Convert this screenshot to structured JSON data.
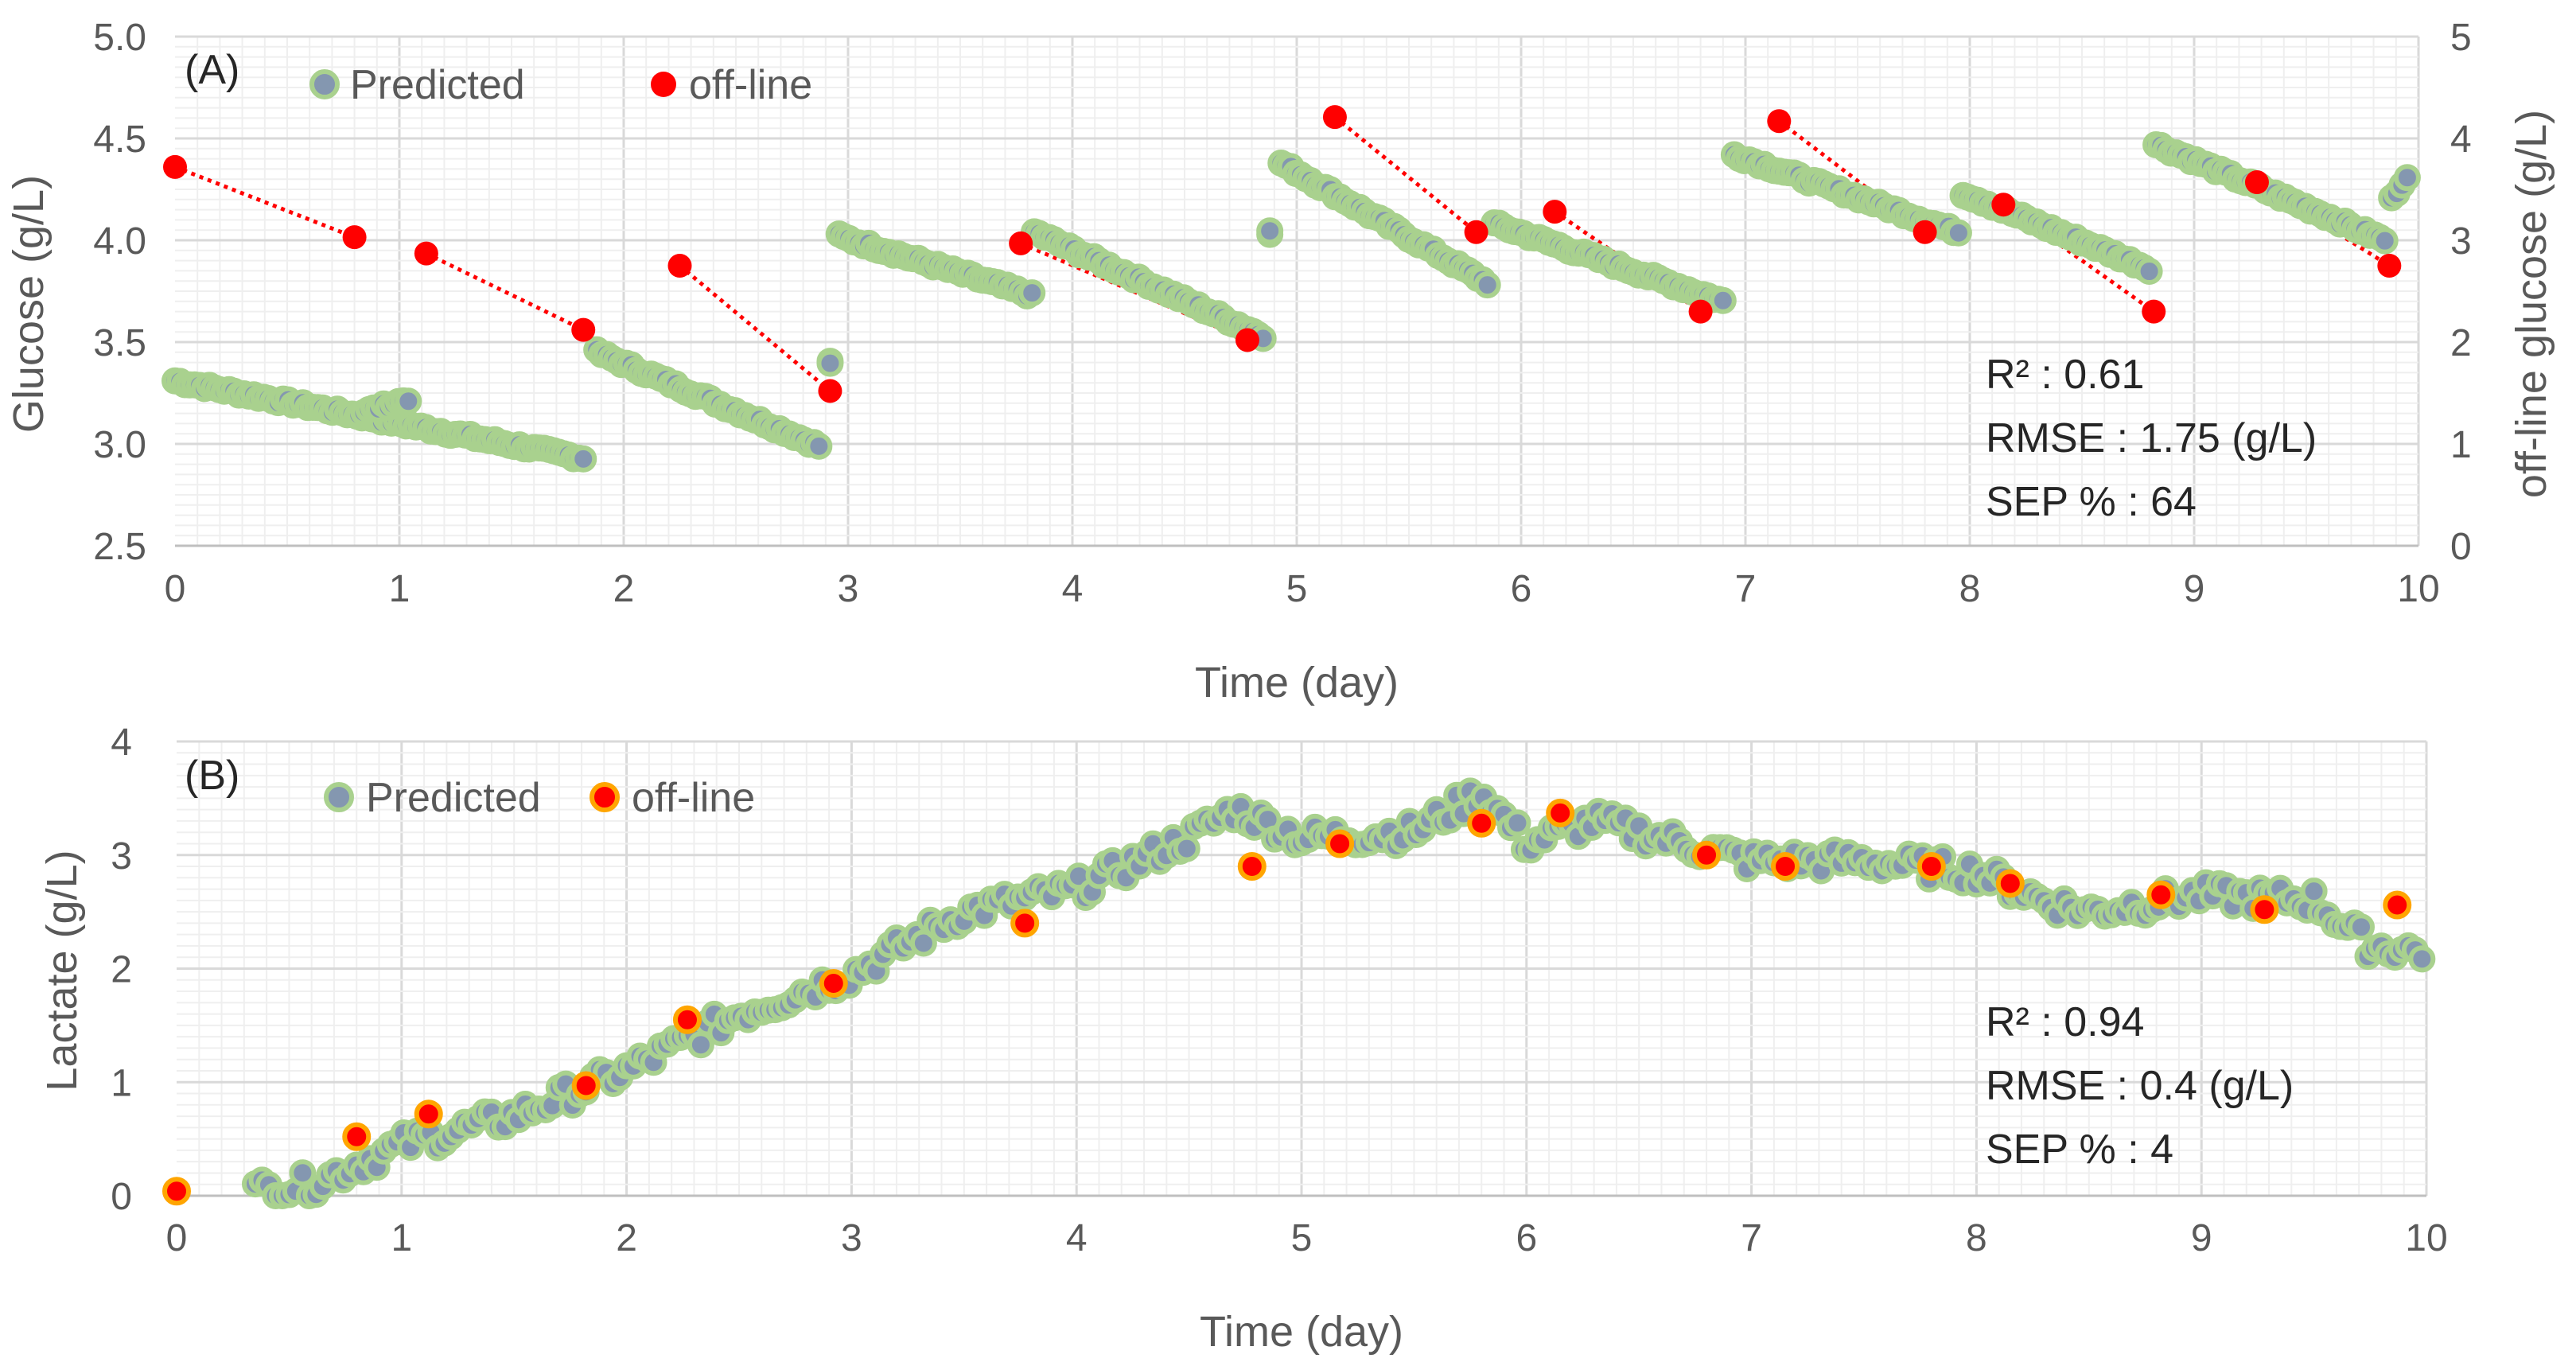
{
  "chart_data": [
    {
      "type": "scatter",
      "panel_label": "(A)",
      "title": "",
      "xlabel": "Time (day)",
      "ylabel": "Glucose (g/L)",
      "y2label": "off-line glucose (g/L)",
      "xlim": [
        0,
        10
      ],
      "ylim": [
        2.5,
        5.0
      ],
      "y2lim": [
        0,
        5
      ],
      "x_ticks": [
        "0",
        "1",
        "2",
        "3",
        "4",
        "5",
        "6",
        "7",
        "8",
        "9",
        "10"
      ],
      "y_ticks": [
        "2.5",
        "3.0",
        "3.5",
        "4.0",
        "4.5",
        "5.0"
      ],
      "y2_ticks": [
        "0",
        "1",
        "2",
        "3",
        "4",
        "5"
      ],
      "grid": true,
      "legend_position": "top-left",
      "legend": {
        "predicted": "Predicted",
        "offline": "off-line"
      },
      "stats": [
        "R² : 0.61",
        "RMSE : 1.75 (g/L)",
        "SEP % : 64"
      ],
      "colors": {
        "predicted_fill": "#8497b0",
        "predicted_edge": "#a9d18e",
        "offline": "#ff0000",
        "dotted_line": "#ff0000"
      },
      "predicted_segments": [
        [
          [
            0.0,
            3.31
          ],
          [
            1.82,
            2.93
          ]
        ],
        [
          [
            0.82,
            3.15
          ],
          [
            1.04,
            3.22
          ]
        ],
        [
          [
            1.88,
            3.45
          ],
          [
            2.87,
            2.99
          ]
        ],
        [
          [
            2.92,
            3.4
          ],
          [
            2.92,
            3.4
          ]
        ],
        [
          [
            2.96,
            4.02
          ],
          [
            3.82,
            3.73
          ]
        ],
        [
          [
            3.83,
            4.04
          ],
          [
            4.85,
            3.53
          ]
        ],
        [
          [
            4.88,
            4.04
          ],
          [
            4.88,
            4.04
          ]
        ],
        [
          [
            4.93,
            4.38
          ],
          [
            5.85,
            3.79
          ]
        ],
        [
          [
            5.88,
            4.08
          ],
          [
            6.9,
            3.7
          ]
        ],
        [
          [
            6.95,
            4.42
          ],
          [
            7.95,
            4.04
          ]
        ],
        [
          [
            7.97,
            4.23
          ],
          [
            8.8,
            3.86
          ]
        ],
        [
          [
            8.83,
            4.47
          ],
          [
            9.85,
            4.0
          ]
        ],
        [
          [
            9.88,
            4.2
          ],
          [
            9.95,
            4.32
          ]
        ]
      ],
      "offline_points": [
        {
          "day": 0.0,
          "value": 3.72
        },
        {
          "day": 0.8,
          "value": 3.03
        },
        {
          "day": 1.12,
          "value": 2.87
        },
        {
          "day": 1.82,
          "value": 2.12
        },
        {
          "day": 2.25,
          "value": 2.75
        },
        {
          "day": 2.92,
          "value": 1.52
        },
        {
          "day": 3.77,
          "value": 2.97
        },
        {
          "day": 4.78,
          "value": 2.02
        },
        {
          "day": 5.17,
          "value": 4.21
        },
        {
          "day": 5.8,
          "value": 3.08
        },
        {
          "day": 6.15,
          "value": 3.28
        },
        {
          "day": 6.8,
          "value": 2.3
        },
        {
          "day": 7.15,
          "value": 4.17
        },
        {
          "day": 7.8,
          "value": 3.08
        },
        {
          "day": 8.15,
          "value": 3.35
        },
        {
          "day": 8.82,
          "value": 2.3
        },
        {
          "day": 9.28,
          "value": 3.57
        },
        {
          "day": 9.87,
          "value": 2.75
        }
      ],
      "offline_links": [
        [
          0,
          1
        ],
        [
          2,
          3
        ],
        [
          4,
          5
        ],
        [
          6,
          7
        ],
        [
          8,
          9
        ],
        [
          10,
          11
        ],
        [
          12,
          13
        ],
        [
          14,
          15
        ],
        [
          16,
          17
        ]
      ]
    },
    {
      "type": "scatter",
      "panel_label": "(B)",
      "title": "",
      "xlabel": "Time (day)",
      "ylabel": "Lactate (g/L)",
      "xlim": [
        0,
        10
      ],
      "ylim": [
        0,
        4
      ],
      "x_ticks": [
        "0",
        "1",
        "2",
        "3",
        "4",
        "5",
        "6",
        "7",
        "8",
        "9",
        "10"
      ],
      "y_ticks": [
        "0",
        "1",
        "2",
        "3",
        "4"
      ],
      "grid": true,
      "legend_position": "top-left",
      "legend": {
        "predicted": "Predicted",
        "offline": "off-line"
      },
      "stats": [
        "R² : 0.94",
        "RMSE : 0.4 (g/L)",
        "SEP % : 4"
      ],
      "colors": {
        "predicted_fill": "#8497b0",
        "predicted_edge": "#a9d18e",
        "offline_fill": "#ff0000",
        "offline_edge": "#ffa500"
      },
      "predicted_trend": [
        [
          0.35,
          0.05
        ],
        [
          0.6,
          0.1
        ],
        [
          1.0,
          0.45
        ],
        [
          1.5,
          0.7
        ],
        [
          2.0,
          1.1
        ],
        [
          2.5,
          1.6
        ],
        [
          3.0,
          1.95
        ],
        [
          3.5,
          2.5
        ],
        [
          4.0,
          2.7
        ],
        [
          4.5,
          3.15
        ],
        [
          4.7,
          3.4
        ],
        [
          5.0,
          3.15
        ],
        [
          5.5,
          3.2
        ],
        [
          5.8,
          3.55
        ],
        [
          6.0,
          3.1
        ],
        [
          6.3,
          3.3
        ],
        [
          6.5,
          3.2
        ],
        [
          7.0,
          2.95
        ],
        [
          7.5,
          2.95
        ],
        [
          8.0,
          2.85
        ],
        [
          8.3,
          2.6
        ],
        [
          8.5,
          2.5
        ],
        [
          9.0,
          2.65
        ],
        [
          9.5,
          2.6
        ],
        [
          9.75,
          2.2
        ],
        [
          10.0,
          2.15
        ]
      ],
      "offline_points": [
        {
          "day": 0.0,
          "value": 0.04
        },
        {
          "day": 0.8,
          "value": 0.52
        },
        {
          "day": 1.12,
          "value": 0.72
        },
        {
          "day": 1.82,
          "value": 0.97
        },
        {
          "day": 2.27,
          "value": 1.55
        },
        {
          "day": 2.92,
          "value": 1.87
        },
        {
          "day": 3.77,
          "value": 2.4
        },
        {
          "day": 4.78,
          "value": 2.9
        },
        {
          "day": 5.17,
          "value": 3.1
        },
        {
          "day": 5.8,
          "value": 3.28
        },
        {
          "day": 6.15,
          "value": 3.37
        },
        {
          "day": 6.8,
          "value": 3.0
        },
        {
          "day": 7.15,
          "value": 2.9
        },
        {
          "day": 7.8,
          "value": 2.9
        },
        {
          "day": 8.15,
          "value": 2.75
        },
        {
          "day": 8.82,
          "value": 2.65
        },
        {
          "day": 9.28,
          "value": 2.52
        },
        {
          "day": 9.87,
          "value": 2.56
        }
      ]
    }
  ]
}
